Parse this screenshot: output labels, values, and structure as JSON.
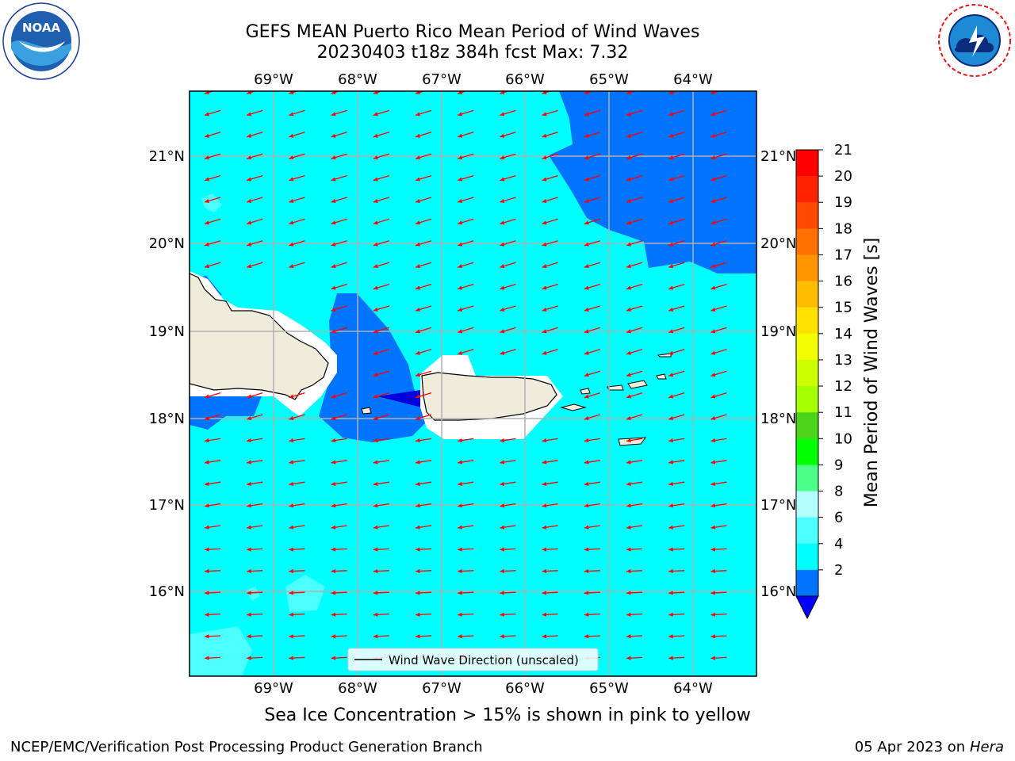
{
  "header": {
    "title_line1": "GEFS MEAN Puerto Rico Mean Period of Wind Waves",
    "title_line2": "20230403 t18z 384h fcst   Max: 7.32"
  },
  "logos": {
    "left": "noaa-logo",
    "left_text": "NOAA",
    "left_ring_text": "NATIONAL OCEANIC AND ATMOSPHERIC ADMINISTRATION · U.S. DEPARTMENT OF COMMERCE",
    "right": "national-weather-service-logo",
    "right_ring_text": "NATIONAL WEATHER SERVICE"
  },
  "map": {
    "lon_labels": [
      "69°W",
      "68°W",
      "67°W",
      "66°W",
      "65°W",
      "64°W"
    ],
    "lat_labels": [
      "21°N",
      "20°N",
      "19°N",
      "18°N",
      "17°N",
      "16°N"
    ],
    "legend_label": "Wind Wave Direction (unscaled)",
    "arrow_color": "#ff0000"
  },
  "colorbar": {
    "label": "Mean Period of Wind Waves [s]",
    "ticks": [
      "21",
      "20",
      "19",
      "18",
      "17",
      "16",
      "15",
      "14",
      "13",
      "12",
      "11",
      "10",
      "9",
      "8",
      "6",
      "4",
      "2"
    ],
    "colors": [
      "#ff0000",
      "#ff2400",
      "#ff4a00",
      "#ff7000",
      "#ff9600",
      "#ffbc00",
      "#ffe200",
      "#f2ff00",
      "#ccff00",
      "#a6ff00",
      "#4cd41a",
      "#00ff00",
      "#4cff88",
      "#b3ffff",
      "#4dffff",
      "#00ffff",
      "#0073ff"
    ],
    "under_color": "#0000ff"
  },
  "note": "Sea Ice Concentration > 15% is shown in pink to yellow",
  "footer": {
    "left": "NCEP/EMC/Verification Post Processing Product Generation Branch",
    "date": "05 Apr 2023 on ",
    "machine": "Hera"
  }
}
